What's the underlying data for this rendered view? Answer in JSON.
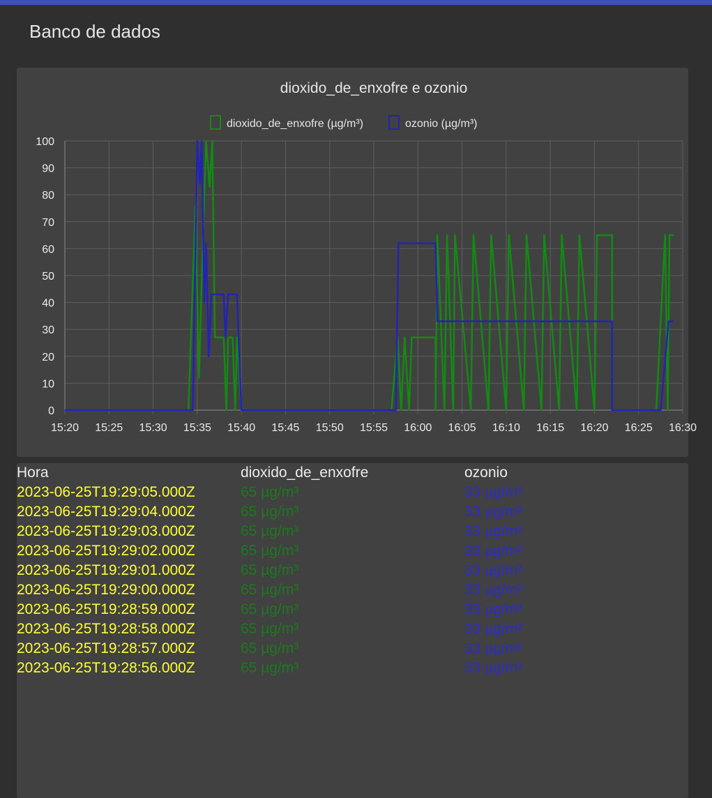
{
  "page": {
    "title": "Banco de dados",
    "accent": "#3f51b5"
  },
  "chart_data": {
    "type": "line",
    "title": "dioxido_de_enxofre e ozonio",
    "legend_position": "top",
    "grid": true,
    "xlabel": "",
    "ylabel": "",
    "ylim": [
      0,
      100
    ],
    "xlim": [
      "15:20",
      "16:30"
    ],
    "y_ticks": [
      "0",
      "10",
      "20",
      "30",
      "40",
      "50",
      "60",
      "70",
      "80",
      "90",
      "100"
    ],
    "x_ticks": [
      "15:20",
      "15:25",
      "15:30",
      "15:35",
      "15:40",
      "15:45",
      "15:50",
      "15:55",
      "16:00",
      "16:05",
      "16:10",
      "16:15",
      "16:20",
      "16:25",
      "16:30"
    ],
    "series": [
      {
        "name": "dioxido_de_enxofre (µg/m³)",
        "color": "#138a13",
        "points": [
          [
            "15:20",
            0
          ],
          [
            "15:34",
            0
          ],
          [
            "15:34.8",
            76
          ],
          [
            "15:35.2",
            12
          ],
          [
            "15:35.6",
            60
          ],
          [
            "15:36",
            100
          ],
          [
            "15:36.4",
            83
          ],
          [
            "15:36.7",
            100
          ],
          [
            "15:37",
            27
          ],
          [
            "15:38",
            27
          ],
          [
            "15:38.3",
            0
          ],
          [
            "15:38.5",
            27
          ],
          [
            "15:39",
            27
          ],
          [
            "15:39.3",
            0
          ],
          [
            "15:39.5",
            27
          ],
          [
            "15:40",
            0
          ],
          [
            "15:57",
            0
          ],
          [
            "15:57.7",
            27
          ],
          [
            "15:58.1",
            0
          ],
          [
            "15:58.5",
            27
          ],
          [
            "15:59",
            0
          ],
          [
            "15:59.3",
            27
          ],
          [
            "16:02",
            27
          ],
          [
            "16:02",
            0
          ],
          [
            "16:02.2",
            65
          ],
          [
            "16:03",
            0
          ],
          [
            "16:03.3",
            65
          ],
          [
            "16:04",
            0
          ],
          [
            "16:04.2",
            65
          ],
          [
            "16:06",
            0
          ],
          [
            "16:06.3",
            65
          ],
          [
            "16:08",
            0
          ],
          [
            "16:08.3",
            65
          ],
          [
            "16:10",
            0
          ],
          [
            "16:10.3",
            65
          ],
          [
            "16:12",
            0
          ],
          [
            "16:12.3",
            65
          ],
          [
            "16:14",
            0
          ],
          [
            "16:14.3",
            65
          ],
          [
            "16:16",
            0
          ],
          [
            "16:16.3",
            65
          ],
          [
            "16:18",
            0
          ],
          [
            "16:18.3",
            65
          ],
          [
            "16:20",
            0
          ],
          [
            "16:20.3",
            65
          ],
          [
            "16:22",
            65
          ],
          [
            "16:22",
            0
          ],
          [
            "16:27",
            0
          ],
          [
            "16:28",
            65
          ],
          [
            "16:28.3",
            0
          ],
          [
            "16:28.5",
            65
          ],
          [
            "16:29",
            65
          ]
        ]
      },
      {
        "name": "ozonio (µg/m³)",
        "color": "#2323b4",
        "points": [
          [
            "15:20",
            0
          ],
          [
            "15:34.5",
            0
          ],
          [
            "15:35",
            100
          ],
          [
            "15:35.3",
            84
          ],
          [
            "15:35.5",
            100
          ],
          [
            "15:35.8",
            40
          ],
          [
            "15:36",
            62
          ],
          [
            "15:36.3",
            20
          ],
          [
            "15:36.6",
            43
          ],
          [
            "15:38",
            43
          ],
          [
            "15:38.2",
            27
          ],
          [
            "15:38.5",
            43
          ],
          [
            "15:39.5",
            43
          ],
          [
            "15:40",
            0
          ],
          [
            "15:57.5",
            0
          ],
          [
            "15:57.8",
            62
          ],
          [
            "16:02",
            62
          ],
          [
            "16:02.2",
            33
          ],
          [
            "16:22",
            33
          ],
          [
            "16:22",
            0
          ],
          [
            "16:27.5",
            0
          ],
          [
            "16:28.4",
            33
          ],
          [
            "16:29",
            33
          ]
        ]
      }
    ]
  },
  "table": {
    "headers": {
      "hora": "Hora",
      "so2": "dioxido_de_enxofre",
      "o3": "ozonio"
    },
    "colors": {
      "hora": "#ffff33",
      "so2": "#1b7a1b",
      "o3": "#2b2bd6"
    },
    "rows": [
      {
        "hora": "2023-06-25T19:29:05.000Z",
        "so2": "65 µg/m³",
        "o3": "33 µg/m³"
      },
      {
        "hora": "2023-06-25T19:29:04.000Z",
        "so2": "65 µg/m³",
        "o3": "33 µg/m³"
      },
      {
        "hora": "2023-06-25T19:29:03.000Z",
        "so2": "65 µg/m³",
        "o3": "33 µg/m³"
      },
      {
        "hora": "2023-06-25T19:29:02.000Z",
        "so2": "65 µg/m³",
        "o3": "33 µg/m³"
      },
      {
        "hora": "2023-06-25T19:29:01.000Z",
        "so2": "65 µg/m³",
        "o3": "33 µg/m³"
      },
      {
        "hora": "2023-06-25T19:29:00.000Z",
        "so2": "65 µg/m³",
        "o3": "33 µg/m³"
      },
      {
        "hora": "2023-06-25T19:28:59.000Z",
        "so2": "65 µg/m³",
        "o3": "33 µg/m³"
      },
      {
        "hora": "2023-06-25T19:28:58.000Z",
        "so2": "65 µg/m³",
        "o3": "33 µg/m³"
      },
      {
        "hora": "2023-06-25T19:28:57.000Z",
        "so2": "65 µg/m³",
        "o3": "33 µg/m³"
      },
      {
        "hora": "2023-06-25T19:28:56.000Z",
        "so2": "65 µg/m³",
        "o3": "33 µg/m³"
      }
    ]
  }
}
